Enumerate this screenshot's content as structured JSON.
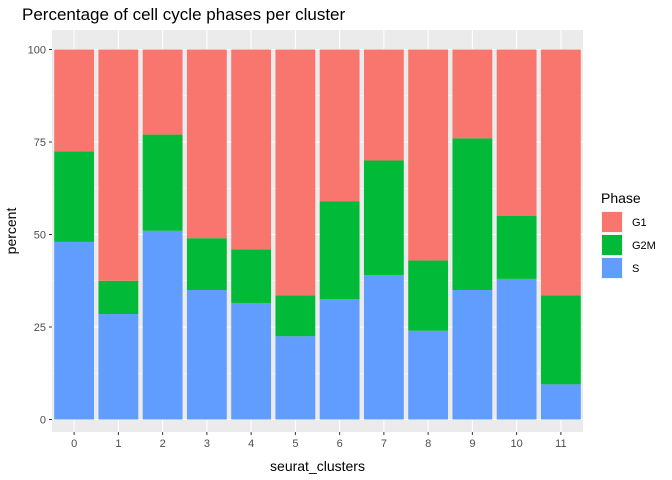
{
  "chart_data": {
    "type": "bar",
    "stacked": true,
    "title": "Percentage of cell cycle phases per cluster",
    "xlabel": "seurat_clusters",
    "ylabel": "percent",
    "categories": [
      "0",
      "1",
      "2",
      "3",
      "4",
      "5",
      "6",
      "7",
      "8",
      "9",
      "10",
      "11"
    ],
    "ylim": [
      0,
      100
    ],
    "yticks": [
      0,
      25,
      50,
      75,
      100
    ],
    "grid": true,
    "legend": {
      "title": "Phase",
      "position": "right"
    },
    "series": [
      {
        "name": "S",
        "color": "#619CFF",
        "values": [
          48,
          28.5,
          51,
          35,
          31.5,
          22.5,
          32.5,
          39,
          24,
          35,
          38,
          9.5
        ]
      },
      {
        "name": "G2M",
        "color": "#00BA38",
        "values": [
          24.5,
          9,
          26,
          14,
          14.5,
          11,
          26.5,
          31,
          19,
          41,
          17,
          24
        ]
      },
      {
        "name": "G1",
        "color": "#F8766D",
        "values": [
          27.5,
          62.5,
          23,
          51,
          54,
          66.5,
          41,
          30,
          57,
          24,
          45,
          66.5
        ]
      }
    ],
    "legend_order": [
      "G1",
      "G2M",
      "S"
    ]
  }
}
